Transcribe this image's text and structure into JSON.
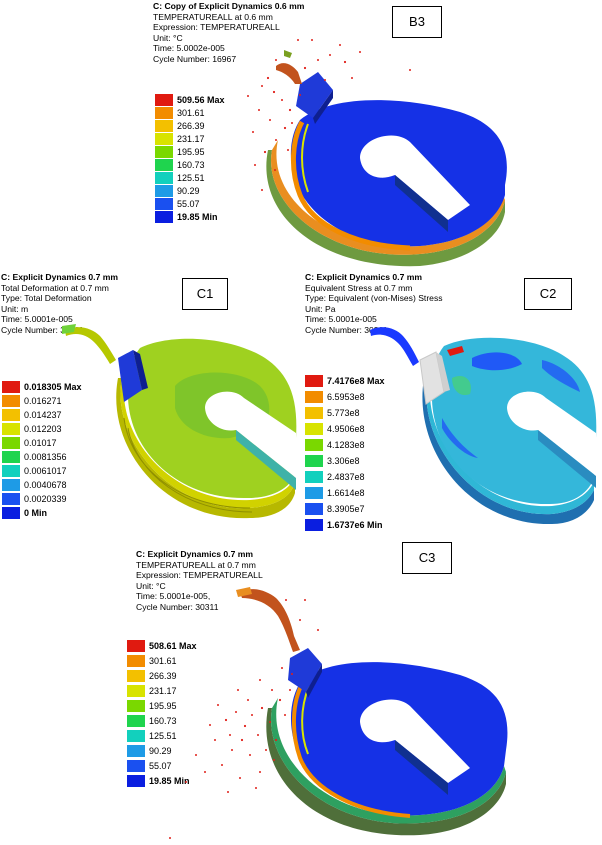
{
  "panels": {
    "b3": {
      "tag": "B3",
      "title": "C: Copy of Explicit Dynamics 0.6 mm",
      "lines": [
        "TEMPERATUREALL at 0.6 mm",
        "Expression: TEMPERATUREALL",
        "Unit: °C",
        "Time: 5.0002e-005",
        "Cycle Number: 16967"
      ],
      "legend": [
        "509.56 Max",
        "301.61",
        "266.39",
        "231.17",
        "195.95",
        "160.73",
        "125.51",
        "90.29",
        "55.07",
        "19.85 Min"
      ]
    },
    "c1": {
      "tag": "C1",
      "title": "C: Explicit Dynamics 0.7 mm",
      "lines": [
        "Total Deformation at 0.7 mm",
        "Type: Total Deformation",
        "Unit: m",
        "Time: 5.0001e-005",
        "Cycle Number: 30311"
      ],
      "legend": [
        "0.018305 Max",
        "0.016271",
        "0.014237",
        "0.012203",
        "0.01017",
        "0.0081356",
        "0.0061017",
        "0.0040678",
        "0.0020339",
        "0 Min"
      ]
    },
    "c2": {
      "tag": "C2",
      "title": "C: Explicit Dynamics 0.7 mm",
      "lines": [
        "Equivalent Stress at 0.7 mm",
        "Type: Equivalent (von-Mises) Stress",
        "Unit: Pa",
        "Time: 5.0001e-005",
        "Cycle Number: 30311"
      ],
      "legend": [
        "7.4176e8 Max",
        "6.5953e8",
        "5.773e8",
        "4.9506e8",
        "4.1283e8",
        "3.306e8",
        "2.4837e8",
        "1.6614e8",
        "8.3905e7",
        "1.6737e6 Min"
      ]
    },
    "c3": {
      "tag": "C3",
      "title": "C: Explicit Dynamics 0.7 mm",
      "lines": [
        "TEMPERATUREALL at 0.7 mm",
        "Expression: TEMPERATUREALL",
        "Unit: °C",
        "Time: 5.0001e-005,",
        "Cycle Number: 30311"
      ],
      "legend": [
        "508.61 Max",
        "301.61",
        "266.39",
        "231.17",
        "195.95",
        "160.73",
        "125.51",
        "90.29",
        "55.07",
        "19.85 Min"
      ]
    }
  },
  "colors": {
    "scale": [
      "#e01a10",
      "#f28c00",
      "#f3c000",
      "#d8e300",
      "#7ad800",
      "#1fd44e",
      "#12d0bd",
      "#1e9be6",
      "#1a50f0",
      "#0a1ee0"
    ],
    "specimen_blue": "#1531e6",
    "deformation_green": "#9fd120",
    "deformation_yellow": "#d1d200",
    "stress_cyan": "#2fb7d6",
    "stress_blue": "#1a39ff",
    "particle_red": "#e0201a"
  }
}
